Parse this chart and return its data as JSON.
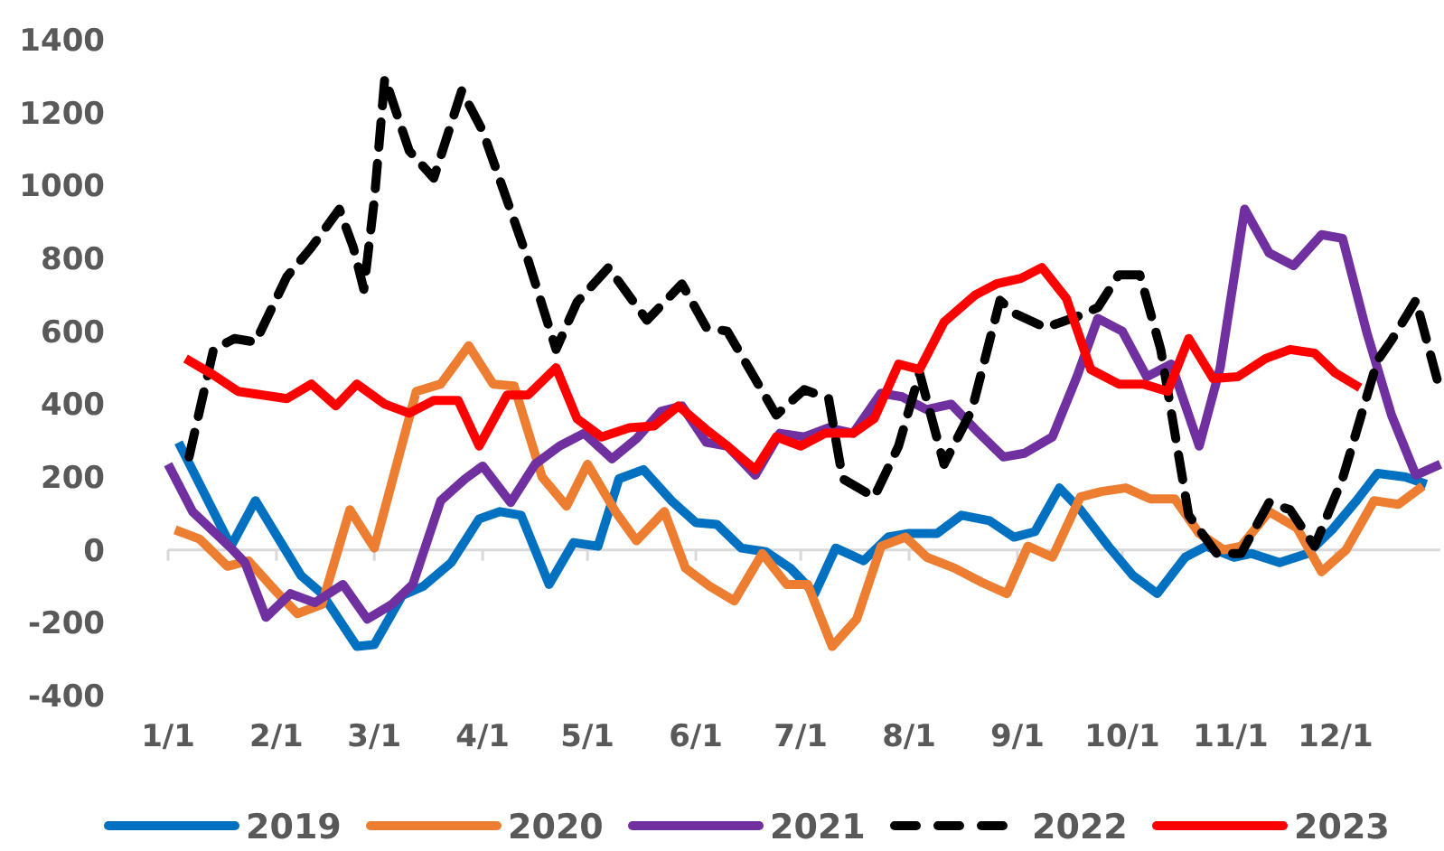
{
  "chart_data": {
    "type": "line",
    "xlim": [
      "--01-01",
      "--12-31"
    ],
    "ylim": [
      -400,
      1400
    ],
    "xticks": [
      {
        "value": "--01-01",
        "label": "1/1"
      },
      {
        "value": "--02-01",
        "label": "2/1"
      },
      {
        "value": "--03-01",
        "label": "3/1"
      },
      {
        "value": "--04-01",
        "label": "4/1"
      },
      {
        "value": "--05-01",
        "label": "5/1"
      },
      {
        "value": "--06-01",
        "label": "6/1"
      },
      {
        "value": "--07-01",
        "label": "7/1"
      },
      {
        "value": "--08-01",
        "label": "8/1"
      },
      {
        "value": "--09-01",
        "label": "9/1"
      },
      {
        "value": "--10-01",
        "label": "10/1"
      },
      {
        "value": "--11-01",
        "label": "11/1"
      },
      {
        "value": "--12-01",
        "label": "12/1"
      }
    ],
    "yticks": [
      -400,
      -200,
      0,
      200,
      400,
      600,
      800,
      1000,
      1200,
      1400
    ],
    "grid": false,
    "legend": "bottom",
    "ref_lines": [
      {
        "axis": "y",
        "value": 0,
        "color": "#d9d9d9",
        "line_style": "solid"
      }
    ],
    "series": [
      {
        "name": "2019",
        "color": "#0070c0",
        "line_style": "solid",
        "x": [
          "--01-04",
          "--01-19",
          "--01-26",
          "--02-08",
          "--02-14",
          "--02-24",
          "--03-01",
          "--03-09",
          "--03-15",
          "--03-23",
          "--03-31",
          "--04-06",
          "--04-12",
          "--04-20",
          "--04-27",
          "--05-04",
          "--05-10",
          "--05-17",
          "--05-25",
          "--06-01",
          "--06-07",
          "--06-14",
          "--06-21",
          "--06-28",
          "--07-05",
          "--07-11",
          "--07-19",
          "--07-26",
          "--08-01",
          "--08-09",
          "--08-16",
          "--08-24",
          "--08-31",
          "--09-06",
          "--09-13",
          "--09-19",
          "--09-27",
          "--10-04",
          "--10-11",
          "--10-19",
          "--10-25",
          "--11-02",
          "--11-07",
          "--11-15",
          "--11-23",
          "--11-30",
          "--12-07",
          "--12-13",
          "--12-21",
          "--12-27"
        ],
        "values": [
          295,
          10,
          135,
          -70,
          -120,
          -265,
          -260,
          -125,
          -100,
          -35,
          85,
          105,
          95,
          -95,
          20,
          10,
          195,
          220,
          135,
          75,
          70,
          5,
          -5,
          -50,
          -120,
          5,
          -30,
          35,
          45,
          45,
          95,
          80,
          35,
          50,
          170,
          110,
          10,
          -70,
          -120,
          -20,
          10,
          -20,
          -10,
          -35,
          -10,
          55,
          135,
          210,
          200,
          180
        ]
      },
      {
        "name": "2020",
        "color": "#ed7d31",
        "line_style": "solid",
        "x": [
          "--01-03",
          "--01-10",
          "--01-18",
          "--01-24",
          "--02-01",
          "--02-07",
          "--02-14",
          "--02-22",
          "--03-01",
          "--03-13",
          "--03-20",
          "--03-28",
          "--04-04",
          "--04-10",
          "--04-18",
          "--04-25",
          "--05-01",
          "--05-09",
          "--05-15",
          "--05-23",
          "--05-29",
          "--06-05",
          "--06-12",
          "--06-20",
          "--06-27",
          "--07-03",
          "--07-10",
          "--07-17",
          "--07-24",
          "--07-31",
          "--08-06",
          "--08-14",
          "--08-22",
          "--08-29",
          "--09-04",
          "--09-11",
          "--09-19",
          "--09-25",
          "--10-02",
          "--10-09",
          "--10-16",
          "--10-23",
          "--10-30",
          "--11-04",
          "--11-12",
          "--11-20",
          "--11-27",
          "--12-04",
          "--12-12",
          "--12-19",
          "--12-26"
        ],
        "values": [
          55,
          30,
          -45,
          -30,
          -115,
          -175,
          -150,
          110,
          5,
          435,
          455,
          560,
          455,
          450,
          200,
          120,
          235,
          105,
          25,
          105,
          -50,
          -100,
          -140,
          -10,
          -95,
          -95,
          -265,
          -190,
          10,
          35,
          -20,
          -50,
          -90,
          -120,
          10,
          -20,
          145,
          160,
          170,
          140,
          140,
          45,
          0,
          10,
          105,
          60,
          -60,
          0,
          135,
          125,
          175
        ]
      },
      {
        "name": "2021",
        "color": "#7030a0",
        "line_style": "solid",
        "x": [
          "--01-01",
          "--01-08",
          "--01-19",
          "--01-23",
          "--01-29",
          "--02-05",
          "--02-12",
          "--02-20",
          "--02-27",
          "--03-06",
          "--03-12",
          "--03-20",
          "--03-27",
          "--04-01",
          "--04-09",
          "--04-16",
          "--04-23",
          "--04-30",
          "--05-08",
          "--05-15",
          "--05-22",
          "--05-28",
          "--06-04",
          "--06-10",
          "--06-18",
          "--06-25",
          "--07-02",
          "--07-09",
          "--07-16",
          "--07-24",
          "--07-30",
          "--08-06",
          "--08-13",
          "--08-20",
          "--08-28",
          "--09-03",
          "--09-11",
          "--09-18",
          "--09-24",
          "--10-01",
          "--10-08",
          "--10-15",
          "--10-23",
          "--10-29",
          "--11-05",
          "--11-12",
          "--11-19",
          "--11-27",
          "--12-03",
          "--12-10",
          "--12-17",
          "--12-24",
          "--12-31"
        ],
        "values": [
          235,
          105,
          5,
          -35,
          -185,
          -120,
          -145,
          -95,
          -190,
          -150,
          -95,
          135,
          195,
          230,
          130,
          235,
          285,
          320,
          250,
          305,
          380,
          395,
          295,
          285,
          205,
          320,
          310,
          335,
          320,
          430,
          420,
          385,
          400,
          330,
          255,
          265,
          310,
          475,
          635,
          600,
          475,
          510,
          285,
          500,
          935,
          815,
          780,
          865,
          855,
          595,
          370,
          205,
          235
        ]
      },
      {
        "name": "2022",
        "color": "#000000",
        "line_style": "dashed",
        "x": [
          "--01-07",
          "--01-14",
          "--01-20",
          "--01-26",
          "--02-04",
          "--02-11",
          "--02-19",
          "--02-23",
          "--02-26",
          "--03-01",
          "--03-04",
          "--03-11",
          "--03-18",
          "--03-26",
          "--04-01",
          "--04-14",
          "--04-22",
          "--04-28",
          "--05-07",
          "--05-18",
          "--05-28",
          "--06-04",
          "--06-10",
          "--06-24",
          "--07-02",
          "--07-09",
          "--07-13",
          "--07-22",
          "--07-29",
          "--08-04",
          "--08-11",
          "--08-19",
          "--08-27",
          "--08-31",
          "--09-09",
          "--09-18",
          "--09-24",
          "--09-30",
          "--10-06",
          "--10-12",
          "--10-20",
          "--10-28",
          "--11-04",
          "--11-12",
          "--11-18",
          "--11-25",
          "--12-03",
          "--12-13",
          "--12-17",
          "--12-24",
          "--12-31"
        ],
        "values": [
          255,
          550,
          580,
          570,
          750,
          830,
          935,
          830,
          715,
          960,
          1295,
          1095,
          1020,
          1260,
          1150,
          795,
          550,
          680,
          775,
          630,
          730,
          610,
          600,
          370,
          440,
          415,
          195,
          145,
          285,
          485,
          235,
          385,
          685,
          650,
          610,
          640,
          665,
          755,
          755,
          550,
          95,
          -10,
          -10,
          130,
          110,
          10,
          195,
          520,
          575,
          685,
          435
        ]
      },
      {
        "name": "2023",
        "color": "#ff0000",
        "line_style": "solid",
        "x": [
          "--01-06",
          "--01-14",
          "--01-21",
          "--01-28",
          "--02-04",
          "--02-11",
          "--02-18",
          "--02-24",
          "--03-04",
          "--03-11",
          "--03-18",
          "--03-25",
          "--03-31",
          "--04-08",
          "--04-14",
          "--04-22",
          "--04-28",
          "--05-05",
          "--05-13",
          "--05-20",
          "--05-27",
          "--06-04",
          "--06-10",
          "--06-18",
          "--06-24",
          "--07-01",
          "--07-08",
          "--07-16",
          "--07-22",
          "--07-29",
          "--08-04",
          "--08-11",
          "--08-20",
          "--08-26",
          "--09-02",
          "--09-08",
          "--09-15",
          "--09-22",
          "--09-30",
          "--10-07",
          "--10-14",
          "--10-20",
          "--10-27",
          "--11-03",
          "--11-11",
          "--11-18",
          "--11-25",
          "--12-01",
          "--12-08"
        ],
        "values": [
          525,
          480,
          435,
          425,
          415,
          455,
          395,
          455,
          400,
          375,
          410,
          410,
          285,
          425,
          425,
          500,
          360,
          310,
          335,
          340,
          395,
          330,
          285,
          220,
          310,
          285,
          320,
          320,
          360,
          510,
          495,
          625,
          700,
          730,
          745,
          775,
          690,
          495,
          455,
          455,
          435,
          580,
          470,
          475,
          525,
          550,
          540,
          485,
          445
        ]
      }
    ]
  }
}
